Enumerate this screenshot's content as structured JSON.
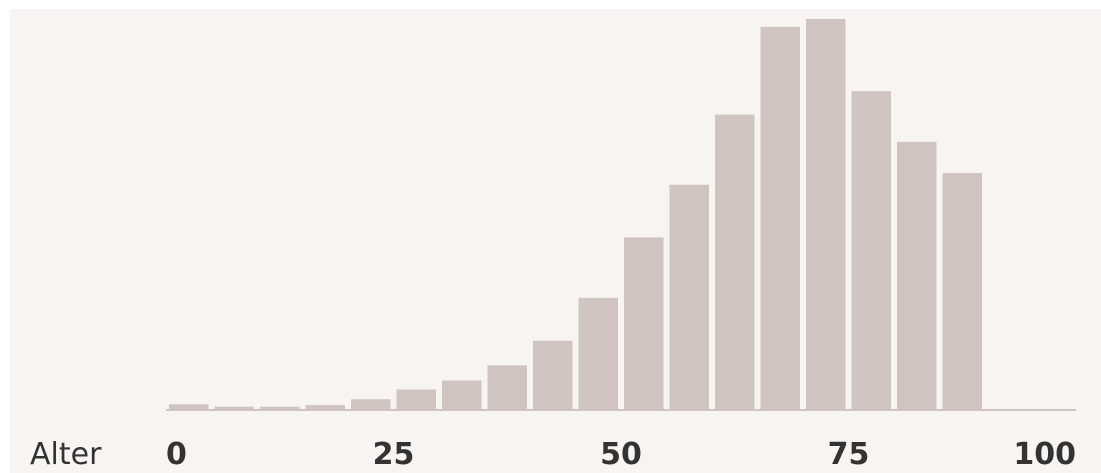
{
  "chart_data": {
    "type": "bar",
    "xlabel": "Alter",
    "ylabel": "",
    "title": "",
    "x_ticks": [
      "0",
      "25",
      "50",
      "75",
      "100"
    ],
    "x_tick_values": [
      0,
      25,
      50,
      75,
      100
    ],
    "xlim": [
      0,
      100
    ],
    "bins": [
      {
        "start": 0,
        "end": 5,
        "value": 1.2
      },
      {
        "start": 5,
        "end": 10,
        "value": 0.6
      },
      {
        "start": 10,
        "end": 15,
        "value": 0.6
      },
      {
        "start": 15,
        "end": 20,
        "value": 1.0
      },
      {
        "start": 20,
        "end": 25,
        "value": 2.5
      },
      {
        "start": 25,
        "end": 30,
        "value": 5.0
      },
      {
        "start": 30,
        "end": 35,
        "value": 7.3
      },
      {
        "start": 35,
        "end": 40,
        "value": 11.2
      },
      {
        "start": 40,
        "end": 45,
        "value": 17.5
      },
      {
        "start": 45,
        "end": 50,
        "value": 28.5
      },
      {
        "start": 50,
        "end": 55,
        "value": 44.0
      },
      {
        "start": 55,
        "end": 60,
        "value": 57.5
      },
      {
        "start": 60,
        "end": 65,
        "value": 75.5
      },
      {
        "start": 65,
        "end": 70,
        "value": 98.0
      },
      {
        "start": 70,
        "end": 75,
        "value": 100.0
      },
      {
        "start": 75,
        "end": 80,
        "value": 81.5
      },
      {
        "start": 80,
        "end": 85,
        "value": 68.5
      },
      {
        "start": 85,
        "end": 90,
        "value": 60.5
      }
    ],
    "ylim": [
      0,
      100
    ],
    "grid": false,
    "bar_color": "#cfc4c0",
    "background_color": "#f8f4f1",
    "baseline_color": "#cfc4c0"
  }
}
